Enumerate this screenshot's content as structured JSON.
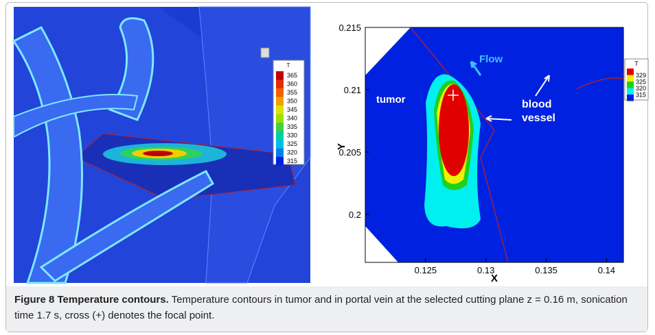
{
  "left_panel": {
    "legend": {
      "title": "T",
      "labels": [
        "365",
        "360",
        "355",
        "350",
        "345",
        "340",
        "335",
        "330",
        "325",
        "320",
        "315"
      ],
      "colors": [
        "#c00000",
        "#e03000",
        "#f06000",
        "#f0a000",
        "#e0e000",
        "#a0e000",
        "#40d040",
        "#00d0a0",
        "#00c0e0",
        "#0080f0",
        "#0020e0"
      ]
    }
  },
  "right_panel": {
    "xlabel": "X",
    "ylabel": "Y",
    "xlim": [
      0.12,
      0.1414
    ],
    "ylim": [
      0.19615,
      0.215
    ],
    "xticks": [
      0.125,
      0.13,
      0.135,
      0.14
    ],
    "yticks": [
      0.2,
      0.205,
      0.21,
      0.215
    ],
    "annotations": {
      "tumor": "tumor",
      "flow": "Flow",
      "vessel": "blood\nvessel"
    },
    "legend": {
      "title": "T",
      "labels": [
        329,
        325,
        320,
        315
      ],
      "colors": [
        "#e00000",
        "#f0f000",
        "#20d020",
        "#00f0f0",
        "#0020e0"
      ]
    }
  },
  "caption": {
    "label": "Figure 8 Temperature contours.",
    "text": "Temperature contours in tumor and in portal vein at the selected cutting plane z = 0.16 m, sonication time 1.7 s, cross (+) denotes the focal point."
  }
}
